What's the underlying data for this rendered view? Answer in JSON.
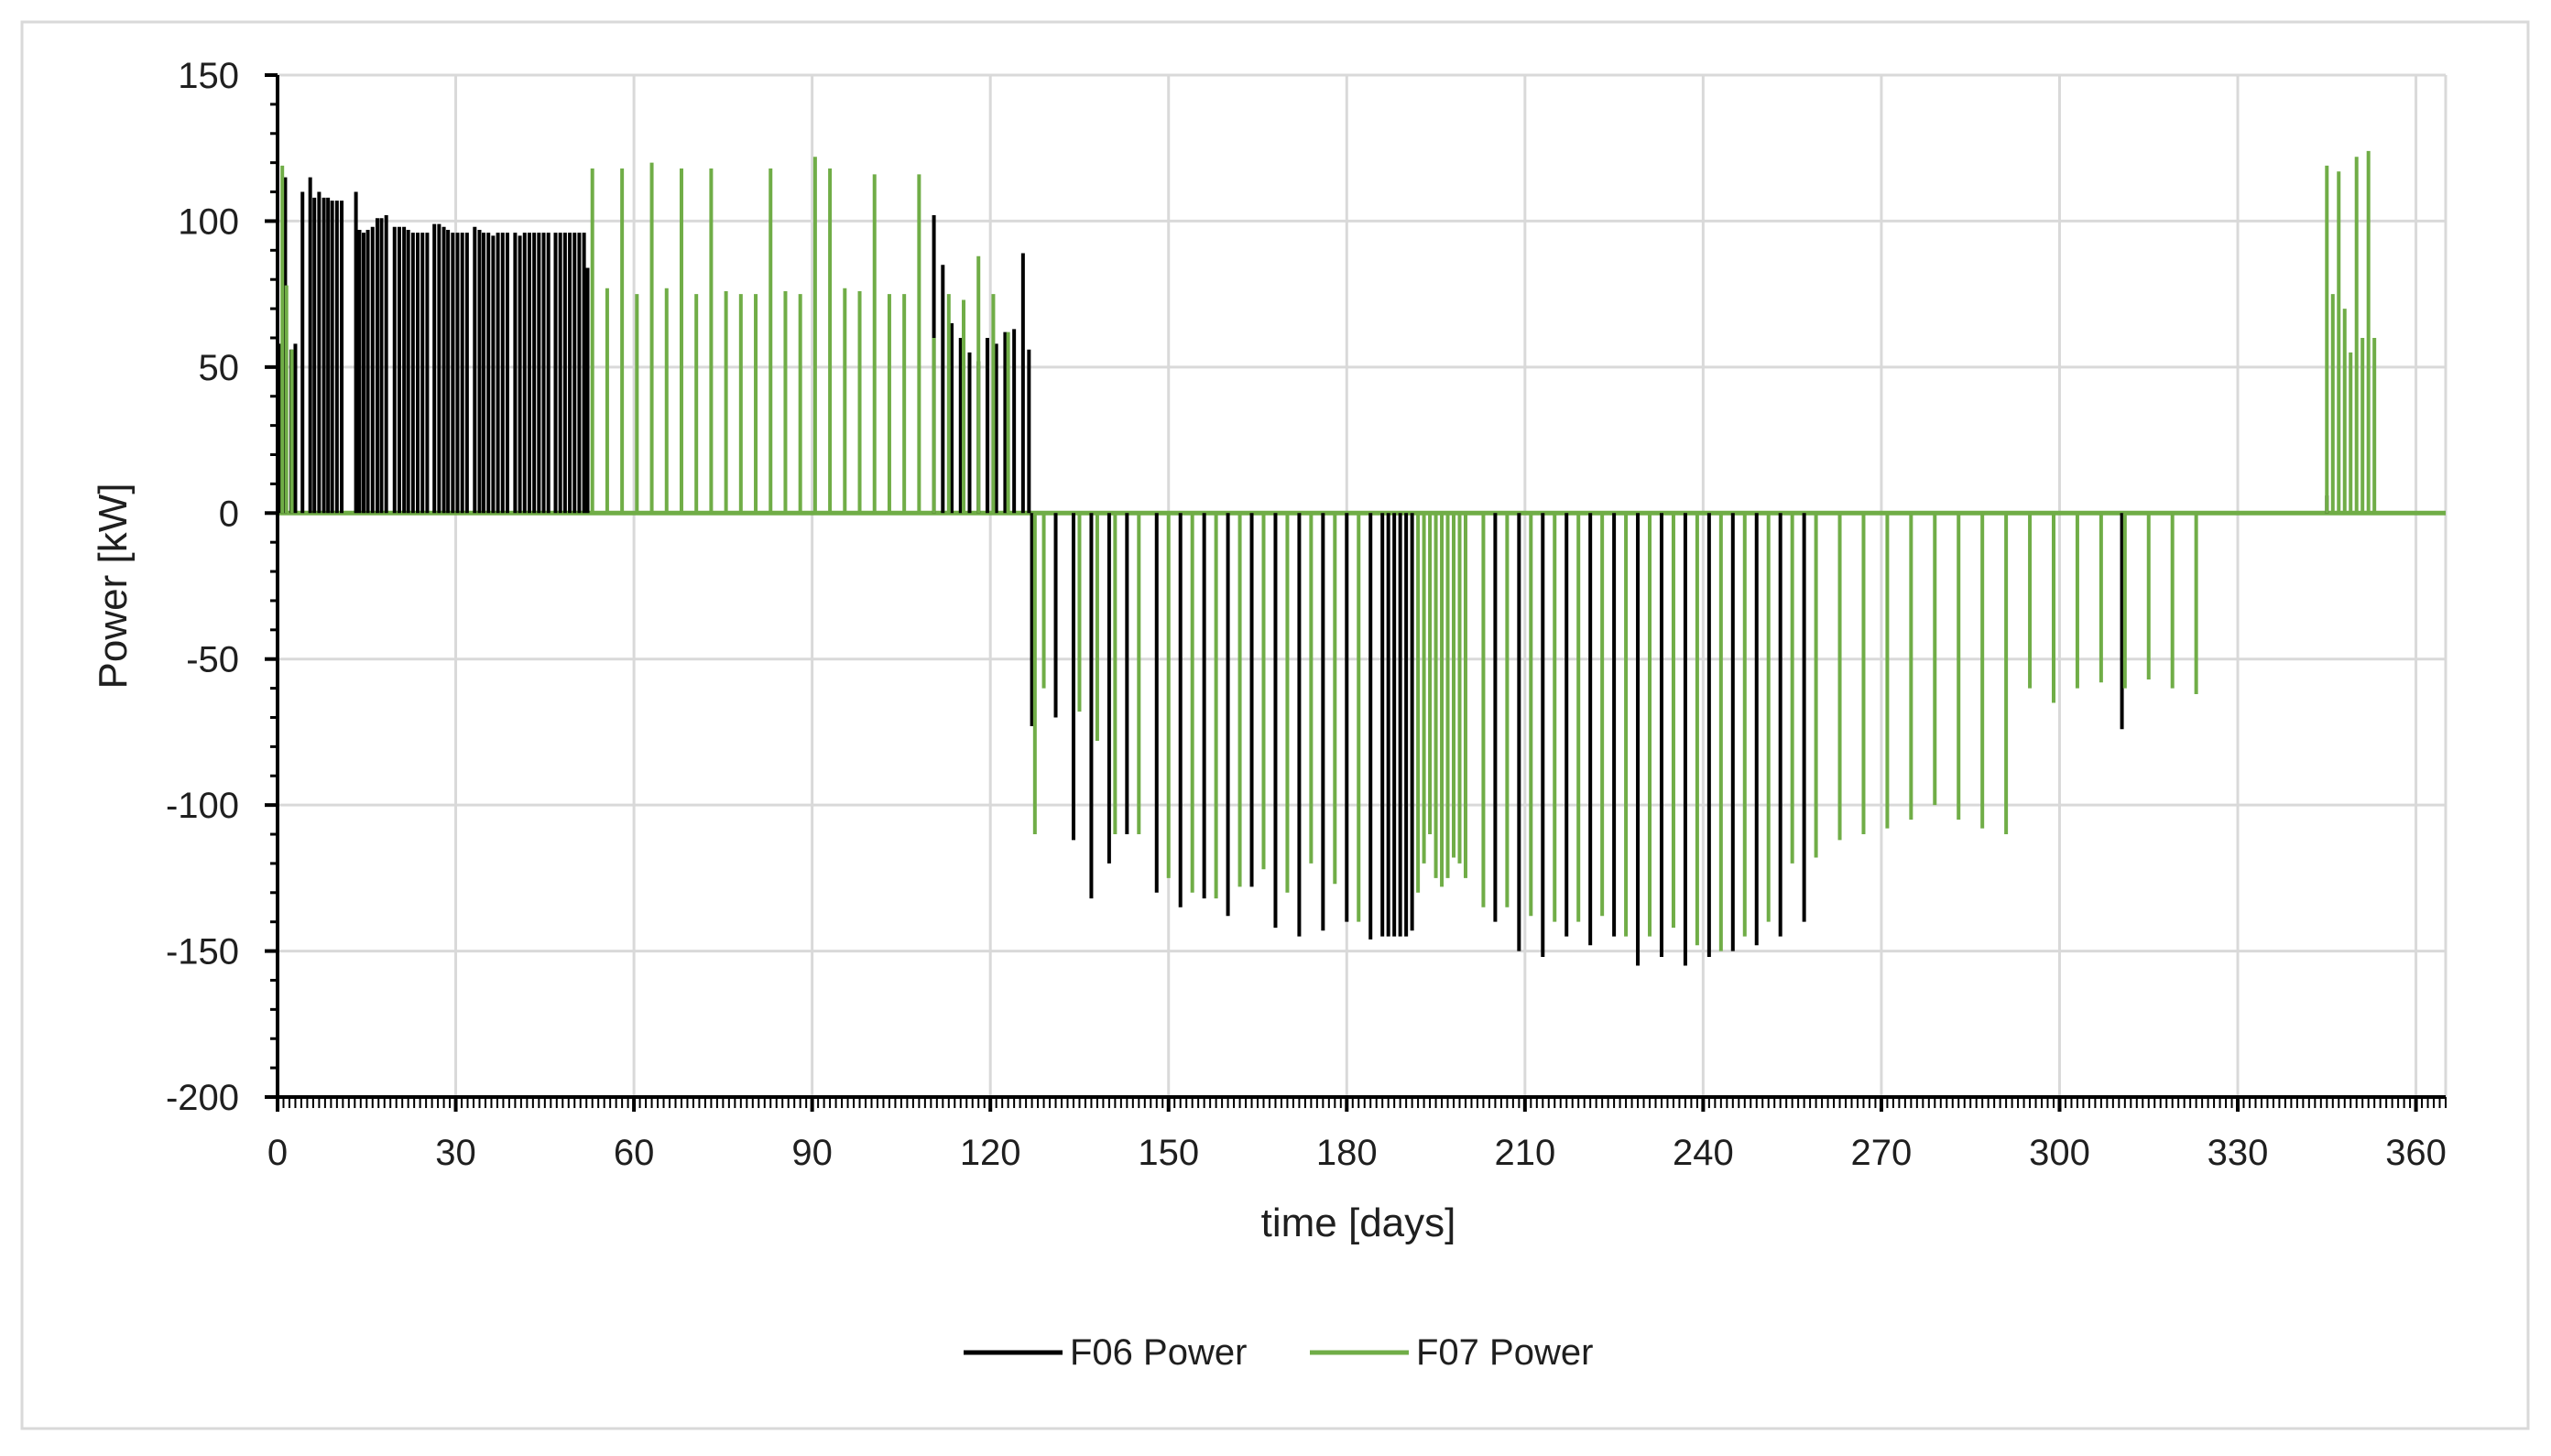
{
  "chart_data": {
    "type": "line",
    "title": "",
    "xlabel": "time [days]",
    "ylabel": "Power [kW]",
    "xlim": [
      0,
      365
    ],
    "ylim": [
      -200,
      150
    ],
    "x_ticks": [
      0,
      30,
      60,
      90,
      120,
      150,
      180,
      210,
      240,
      270,
      300,
      330,
      360
    ],
    "y_ticks": [
      -200,
      -150,
      -100,
      -50,
      0,
      50,
      100,
      150
    ],
    "grid": true,
    "legend": "bottom-center",
    "colors": {
      "F06 Power": "#000000",
      "F07 Power": "#70ad47"
    },
    "series": [
      {
        "name": "F06 Power",
        "spike_x": [
          0.6,
          1.3,
          2.3,
          3.0,
          4.2,
          5.5,
          6.2,
          7.0,
          7.8,
          8.5,
          9.2,
          10.0,
          10.8,
          13.2,
          13.8,
          14.5,
          15.2,
          16.0,
          16.8,
          17.5,
          18.3,
          19.7,
          20.5,
          21.3,
          22.0,
          22.8,
          23.6,
          24.4,
          25.2,
          26.4,
          27.2,
          28.0,
          28.7,
          29.5,
          30.3,
          31.1,
          31.9,
          33.2,
          34.0,
          34.7,
          35.5,
          36.3,
          37.1,
          37.9,
          38.7,
          40.0,
          40.8,
          41.6,
          42.4,
          43.2,
          44.0,
          44.8,
          45.6,
          46.8,
          47.6,
          48.4,
          49.2,
          50.0,
          50.8,
          51.6,
          52.2,
          110.5,
          112.0,
          113.5,
          115.0,
          116.5,
          118.0,
          119.5,
          121.0,
          122.5,
          124.0,
          125.5,
          126.5,
          127.0,
          131.0,
          134.0,
          137.0,
          140.0,
          143.0,
          148.0,
          152.0,
          156.0,
          160.0,
          164.0,
          168.0,
          172.0,
          176.0,
          180.0,
          184.0,
          186.0,
          187.0,
          188.0,
          189.0,
          190.0,
          191.0,
          205.0,
          209.0,
          213.0,
          217.0,
          221.0,
          225.0,
          229.0,
          233.0,
          237.0,
          241.0,
          245.0,
          249.0,
          253.0,
          257.0,
          310.5,
          345.0
        ],
        "spike_y": [
          58,
          115,
          56,
          58,
          110,
          115,
          108,
          110,
          108,
          108,
          107,
          107,
          107,
          110,
          97,
          96,
          97,
          98,
          101,
          101,
          102,
          98,
          98,
          98,
          97,
          96,
          96,
          96,
          96,
          99,
          99,
          98,
          97,
          96,
          96,
          96,
          96,
          98,
          97,
          96,
          96,
          95,
          96,
          96,
          96,
          96,
          95,
          96,
          96,
          96,
          96,
          96,
          96,
          96,
          96,
          96,
          96,
          96,
          96,
          96,
          84,
          102,
          85,
          65,
          60,
          55,
          52,
          60,
          58,
          62,
          63,
          89,
          56,
          -73,
          -70,
          -112,
          -132,
          -120,
          -110,
          -130,
          -135,
          -132,
          -138,
          -128,
          -142,
          -145,
          -143,
          -140,
          -146,
          -145,
          -145,
          -145,
          -145,
          -145,
          -143,
          -140,
          -150,
          -152,
          -145,
          -148,
          -145,
          -155,
          -152,
          -155,
          -152,
          -150,
          -148,
          -145,
          -140,
          -74,
          6
        ]
      },
      {
        "name": "F07 Power",
        "spike_x": [
          0.8,
          1.5,
          2.4,
          53.0,
          55.5,
          58.0,
          60.5,
          63.0,
          65.5,
          68.0,
          70.5,
          73.0,
          75.5,
          78.0,
          80.5,
          83.0,
          85.5,
          88.0,
          90.5,
          93.0,
          95.5,
          98.0,
          100.5,
          103.0,
          105.5,
          108.0,
          110.5,
          113.0,
          115.5,
          118.0,
          120.5,
          123.0,
          127.5,
          129.0,
          135.0,
          138.0,
          141.0,
          145.0,
          150.0,
          154.0,
          158.0,
          162.0,
          166.0,
          170.0,
          174.0,
          178.0,
          182.0,
          192.0,
          193.0,
          194.0,
          195.0,
          196.0,
          197.0,
          198.0,
          199.0,
          200.0,
          203.0,
          207.0,
          211.0,
          215.0,
          219.0,
          223.0,
          227.0,
          231.0,
          235.0,
          239.0,
          243.0,
          247.0,
          251.0,
          255.0,
          259.0,
          263.0,
          267.0,
          271.0,
          275.0,
          279.0,
          283.0,
          287.0,
          291.0,
          295.0,
          299.0,
          303.0,
          307.0,
          311.0,
          315.0,
          319.0,
          323.0,
          345.0,
          346.0,
          347.0,
          348.0,
          349.0,
          350.0,
          351.0,
          352.0,
          353.0
        ],
        "spike_y": [
          119,
          78,
          56,
          118,
          77,
          118,
          75,
          120,
          77,
          118,
          75,
          118,
          76,
          75,
          75,
          118,
          76,
          75,
          122,
          118,
          77,
          76,
          116,
          75,
          75,
          116,
          60,
          75,
          73,
          88,
          75,
          62,
          -110,
          -60,
          -68,
          -78,
          -110,
          -110,
          -125,
          -130,
          -132,
          -128,
          -122,
          -130,
          -120,
          -127,
          -140,
          -130,
          -120,
          -110,
          -125,
          -128,
          -125,
          -118,
          -120,
          -125,
          -135,
          -135,
          -138,
          -140,
          -140,
          -138,
          -145,
          -145,
          -142,
          -148,
          -150,
          -145,
          -140,
          -120,
          -118,
          -112,
          -110,
          -108,
          -105,
          -100,
          -105,
          -108,
          -110,
          -60,
          -65,
          -60,
          -58,
          -60,
          -57,
          -60,
          -62,
          119,
          75,
          117,
          70,
          55,
          122,
          60,
          124,
          60
        ]
      }
    ]
  },
  "legend_items": [
    {
      "label": "F06 Power"
    },
    {
      "label": "F07 Power"
    }
  ]
}
